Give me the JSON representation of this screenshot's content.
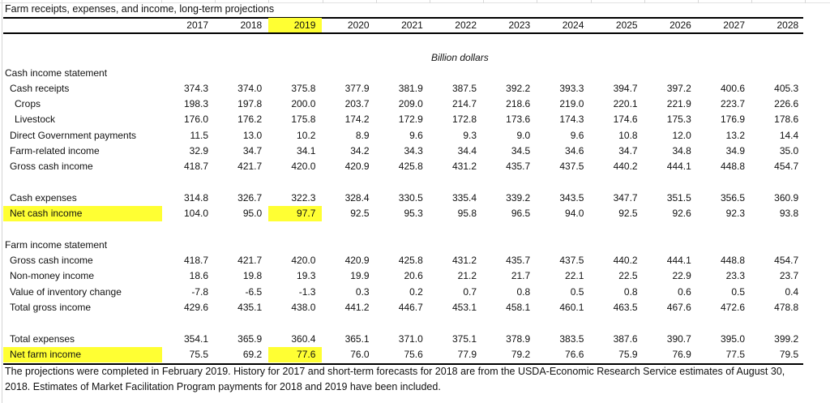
{
  "title": "Farm receipts, expenses, and income, long-term projections",
  "units": "Billion dollars",
  "highlight_color": "#ffff33",
  "highlighted_year": "2019",
  "years": [
    "2017",
    "2018",
    "2019",
    "2020",
    "2021",
    "2022",
    "2023",
    "2024",
    "2025",
    "2026",
    "2027",
    "2028"
  ],
  "rows": [
    {
      "label": "Cash income statement",
      "indent": 0,
      "values": []
    },
    {
      "label": "Cash receipts",
      "indent": 1,
      "values": [
        "374.3",
        "374.0",
        "375.8",
        "377.9",
        "381.9",
        "387.5",
        "392.2",
        "393.3",
        "394.7",
        "397.2",
        "400.6",
        "405.3"
      ]
    },
    {
      "label": "Crops",
      "indent": 2,
      "values": [
        "198.3",
        "197.8",
        "200.0",
        "203.7",
        "209.0",
        "214.7",
        "218.6",
        "219.0",
        "220.1",
        "221.9",
        "223.7",
        "226.6"
      ]
    },
    {
      "label": "Livestock",
      "indent": 2,
      "values": [
        "176.0",
        "176.2",
        "175.8",
        "174.2",
        "172.9",
        "172.8",
        "173.6",
        "174.3",
        "174.6",
        "175.3",
        "176.9",
        "178.6"
      ]
    },
    {
      "label": "Direct Government payments",
      "indent": 1,
      "values": [
        "11.5",
        "13.0",
        "10.2",
        "8.9",
        "9.6",
        "9.3",
        "9.0",
        "9.6",
        "10.8",
        "12.0",
        "13.2",
        "14.4"
      ]
    },
    {
      "label": "Farm-related income",
      "indent": 1,
      "values": [
        "32.9",
        "34.7",
        "34.1",
        "34.2",
        "34.3",
        "34.4",
        "34.5",
        "34.6",
        "34.7",
        "34.8",
        "34.9",
        "35.0"
      ]
    },
    {
      "label": "Gross cash income",
      "indent": 1,
      "values": [
        "418.7",
        "421.7",
        "420.0",
        "420.9",
        "425.8",
        "431.2",
        "435.7",
        "437.5",
        "440.2",
        "444.1",
        "448.8",
        "454.7"
      ]
    },
    null,
    {
      "label": "Cash expenses",
      "indent": 1,
      "values": [
        "314.8",
        "326.7",
        "322.3",
        "328.4",
        "330.5",
        "335.4",
        "339.2",
        "343.5",
        "347.7",
        "351.5",
        "356.5",
        "360.9"
      ]
    },
    {
      "label": "Net cash income",
      "indent": 1,
      "highlight": true,
      "values": [
        "104.0",
        "95.0",
        "97.7",
        "92.5",
        "95.3",
        "95.8",
        "96.5",
        "94.0",
        "92.5",
        "92.6",
        "92.3",
        "93.8"
      ]
    },
    null,
    {
      "label": "Farm income statement",
      "indent": 0,
      "values": []
    },
    {
      "label": "Gross cash income",
      "indent": 1,
      "values": [
        "418.7",
        "421.7",
        "420.0",
        "420.9",
        "425.8",
        "431.2",
        "435.7",
        "437.5",
        "440.2",
        "444.1",
        "448.8",
        "454.7"
      ]
    },
    {
      "label": "Non-money income",
      "indent": 1,
      "values": [
        "18.6",
        "19.8",
        "19.3",
        "19.9",
        "20.6",
        "21.2",
        "21.7",
        "22.1",
        "22.5",
        "22.9",
        "23.3",
        "23.7"
      ]
    },
    {
      "label": "Value of inventory change",
      "indent": 1,
      "values": [
        "-7.8",
        "-6.5",
        "-1.3",
        "0.3",
        "0.2",
        "0.7",
        "0.8",
        "0.5",
        "0.8",
        "0.6",
        "0.5",
        "0.4"
      ]
    },
    {
      "label": "Total gross income",
      "indent": 1,
      "values": [
        "429.6",
        "435.1",
        "438.0",
        "441.2",
        "446.7",
        "453.1",
        "458.1",
        "460.1",
        "463.5",
        "467.6",
        "472.6",
        "478.8"
      ]
    },
    null,
    {
      "label": "Total expenses",
      "indent": 1,
      "values": [
        "354.1",
        "365.9",
        "360.4",
        "365.1",
        "371.0",
        "375.1",
        "378.9",
        "383.5",
        "387.6",
        "390.7",
        "395.0",
        "399.2"
      ]
    },
    {
      "label": "Net farm income",
      "indent": 1,
      "highlight": true,
      "values": [
        "75.5",
        "69.2",
        "77.6",
        "76.0",
        "75.6",
        "77.9",
        "79.2",
        "76.6",
        "75.9",
        "76.9",
        "77.5",
        "79.5"
      ]
    }
  ],
  "footnote_lines": [
    "The projections were completed in February 2019.  History for 2017 and short-term forecasts for 2018 are from the USDA-Economic Research Service estimates of August 30,",
    "2018.  Estimates of Market Facilitation Program payments for 2018 and 2019 have been included."
  ]
}
